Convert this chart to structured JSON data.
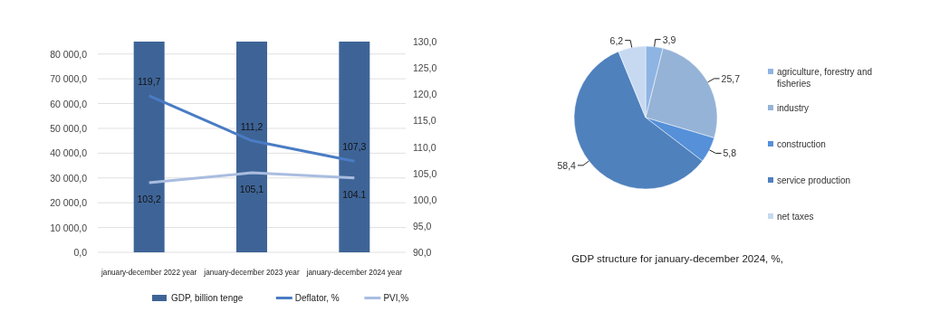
{
  "chart_data": [
    {
      "type": "bar",
      "categories": [
        "january-december 2022 year",
        "january-december 2023 year",
        "january-december 2024 year"
      ],
      "series": [
        {
          "name": "GDP, billion tenge",
          "color": "#3e6497",
          "values": [
            85000,
            85000,
            85000
          ]
        },
        {
          "name": "Deflator, %",
          "type": "line",
          "axis": "y2",
          "color": "#4a7cc4",
          "values": [
            119.7,
            111.2,
            107.3
          ],
          "value_labels": [
            "119,7",
            "111,2",
            "107,3"
          ]
        },
        {
          "name": "PVI,%",
          "type": "line",
          "axis": "y2",
          "color": "#a9bde0",
          "values": [
            103.2,
            105.1,
            104.1
          ],
          "value_labels": [
            "103,2",
            "105,1",
            "104.1"
          ]
        }
      ],
      "ylim": [
        0,
        85000
      ],
      "yticks": [
        {
          "value": 0,
          "label": "0,0"
        },
        {
          "value": 10000,
          "label": "10 000,0"
        },
        {
          "value": 20000,
          "label": "20 000,0"
        },
        {
          "value": 30000,
          "label": "30 000,0"
        },
        {
          "value": 40000,
          "label": "40 000,0"
        },
        {
          "value": 50000,
          "label": "50 000,0"
        },
        {
          "value": 60000,
          "label": "60 000,0"
        },
        {
          "value": 70000,
          "label": "70 000,0"
        },
        {
          "value": 80000,
          "label": "80 000,0"
        }
      ],
      "y2lim": [
        90,
        130
      ],
      "y2ticks": [
        {
          "value": 90,
          "label": "90,0"
        },
        {
          "value": 95,
          "label": "95,0"
        },
        {
          "value": 100,
          "label": "100,0"
        },
        {
          "value": 105,
          "label": "105,0"
        },
        {
          "value": 110,
          "label": "110,0"
        },
        {
          "value": 115,
          "label": "115,0"
        },
        {
          "value": 120,
          "label": "120,0"
        },
        {
          "value": 125,
          "label": "125,0"
        },
        {
          "value": 130,
          "label": "130,0"
        }
      ],
      "grid": "y",
      "legend": "bottom",
      "marker": "none"
    },
    {
      "type": "pie",
      "title": "GDP structure for january-december 2024, %,",
      "categories": [
        "agriculture, forestry and fisheries",
        "industry",
        "construction",
        "service production",
        "net taxes"
      ],
      "values": [
        3.9,
        25.7,
        5.8,
        58.4,
        6.2
      ],
      "value_labels": [
        "3,9",
        "25,7",
        "5,8",
        "58,4",
        "6,2"
      ],
      "colors": [
        "#8eb4e3",
        "#95b3d7",
        "#5590d9",
        "#4f81bd",
        "#c6d9f1"
      ],
      "legend": "right"
    }
  ]
}
